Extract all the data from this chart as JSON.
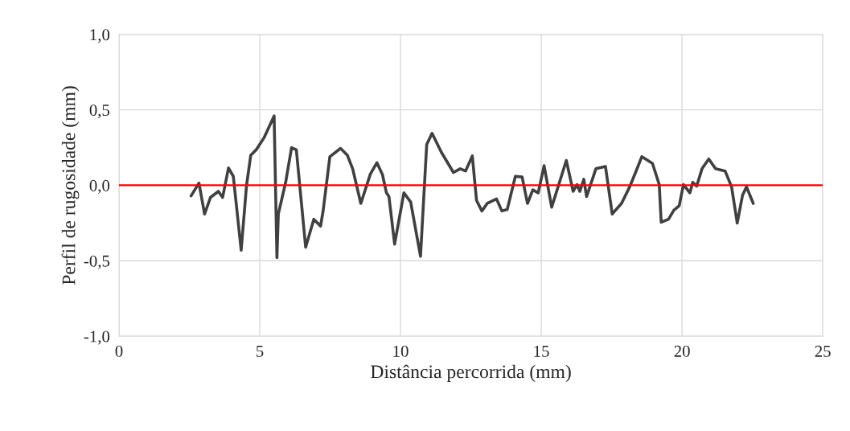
{
  "chart_data": {
    "type": "line",
    "xlabel": "Distância percorrida (mm)",
    "ylabel": "Perfil de rugosidade (mm)",
    "xlim": [
      0,
      25
    ],
    "xticks": [
      0,
      5,
      10,
      15,
      20,
      25
    ],
    "ylim": [
      -1,
      1
    ],
    "yticks": [
      {
        "value": -1,
        "label": "-1,0"
      },
      {
        "value": -0.5,
        "label": "-0,5"
      },
      {
        "value": 0,
        "label": "0,0"
      },
      {
        "value": 0.5,
        "label": "0,5"
      },
      {
        "value": 1,
        "label": "1,0"
      }
    ],
    "grid": true,
    "legend": false,
    "marker": "none",
    "line_style": "solid",
    "ref_lines": [
      {
        "axis": "y",
        "value": 0,
        "label": null,
        "color": "#ff0000",
        "line_style": "solid"
      }
    ],
    "series": [
      {
        "color": "#404040",
        "x": [
          2.56,
          2.84,
          3.04,
          3.25,
          3.53,
          3.68,
          3.89,
          4.06,
          4.34,
          4.53,
          4.68,
          4.87,
          5.15,
          5.51,
          5.61,
          5.66,
          5.92,
          6.13,
          6.3,
          6.63,
          6.92,
          7.16,
          7.25,
          7.49,
          7.87,
          8.11,
          8.3,
          8.59,
          8.93,
          9.16,
          9.36,
          9.5,
          9.59,
          9.79,
          10.12,
          10.36,
          10.71,
          10.93,
          11.12,
          11.45,
          11.88,
          12.12,
          12.31,
          12.55,
          12.7,
          12.89,
          13.08,
          13.41,
          13.6,
          13.79,
          14.08,
          14.32,
          14.51,
          14.7,
          14.89,
          15.1,
          15.37,
          15.89,
          16.13,
          16.27,
          16.37,
          16.51,
          16.61,
          16.94,
          17.28,
          17.52,
          17.85,
          18.14,
          18.38,
          18.57,
          18.95,
          19.19,
          19.26,
          19.52,
          19.71,
          19.9,
          20.05,
          20.28,
          20.38,
          20.52,
          20.71,
          20.95,
          21.19,
          21.53,
          21.76,
          21.96,
          22.15,
          22.29,
          22.53
        ],
        "values": [
          -0.07,
          0.015,
          -0.19,
          -0.08,
          -0.04,
          -0.08,
          0.115,
          0.06,
          -0.43,
          0.0,
          0.2,
          0.235,
          0.315,
          0.46,
          -0.48,
          -0.19,
          0.02,
          0.25,
          0.235,
          -0.41,
          -0.225,
          -0.27,
          -0.17,
          0.19,
          0.245,
          0.2,
          0.11,
          -0.12,
          0.075,
          0.15,
          0.07,
          -0.05,
          -0.075,
          -0.39,
          -0.05,
          -0.11,
          -0.47,
          0.27,
          0.345,
          0.22,
          0.085,
          0.11,
          0.095,
          0.195,
          -0.1,
          -0.17,
          -0.12,
          -0.09,
          -0.17,
          -0.16,
          0.06,
          0.055,
          -0.12,
          -0.03,
          -0.05,
          0.13,
          -0.145,
          0.165,
          -0.04,
          0.005,
          -0.04,
          0.04,
          -0.075,
          0.11,
          0.125,
          -0.19,
          -0.12,
          -0.01,
          0.1,
          0.19,
          0.145,
          0.005,
          -0.245,
          -0.225,
          -0.165,
          -0.135,
          0.005,
          -0.05,
          0.02,
          -0.005,
          0.11,
          0.175,
          0.11,
          0.095,
          -0.01,
          -0.25,
          -0.065,
          -0.01,
          -0.12
        ]
      }
    ]
  }
}
